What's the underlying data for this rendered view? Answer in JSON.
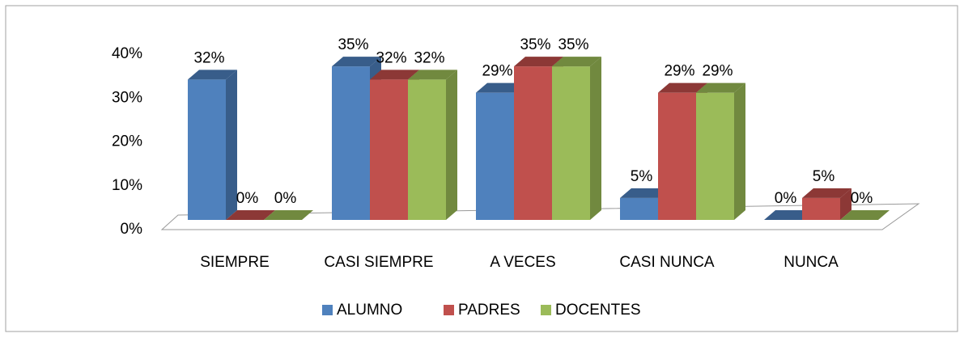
{
  "chart_data": {
    "type": "bar3d",
    "categories": [
      "SIEMPRE",
      "CASI SIEMPRE",
      "A VECES",
      "CASI NUNCA",
      "NUNCA"
    ],
    "series": [
      {
        "name": "ALUMNO",
        "color": "#4f81bd",
        "side": "#385d8a",
        "values": [
          32,
          35,
          29,
          5,
          0
        ],
        "value_labels": [
          "32%",
          "35%",
          "29%",
          "5%",
          "0%"
        ]
      },
      {
        "name": "PADRES",
        "color": "#c0504d",
        "side": "#8c3836",
        "values": [
          0,
          32,
          35,
          29,
          5
        ],
        "value_labels": [
          "0%",
          "32%",
          "35%",
          "29%",
          "5%"
        ]
      },
      {
        "name": "DOCENTES",
        "color": "#9bbb59",
        "side": "#71893f",
        "values": [
          0,
          32,
          35,
          29,
          0
        ],
        "value_labels": [
          "0%",
          "32%",
          "35%",
          "29%",
          "0%"
        ]
      }
    ],
    "ylim": [
      0,
      40
    ],
    "yticks": [
      {
        "value": 0,
        "label": "0%"
      },
      {
        "value": 10,
        "label": "10%"
      },
      {
        "value": 20,
        "label": "20%"
      },
      {
        "value": 30,
        "label": "30%"
      },
      {
        "value": 40,
        "label": "40%"
      }
    ],
    "legend": "bottom"
  }
}
